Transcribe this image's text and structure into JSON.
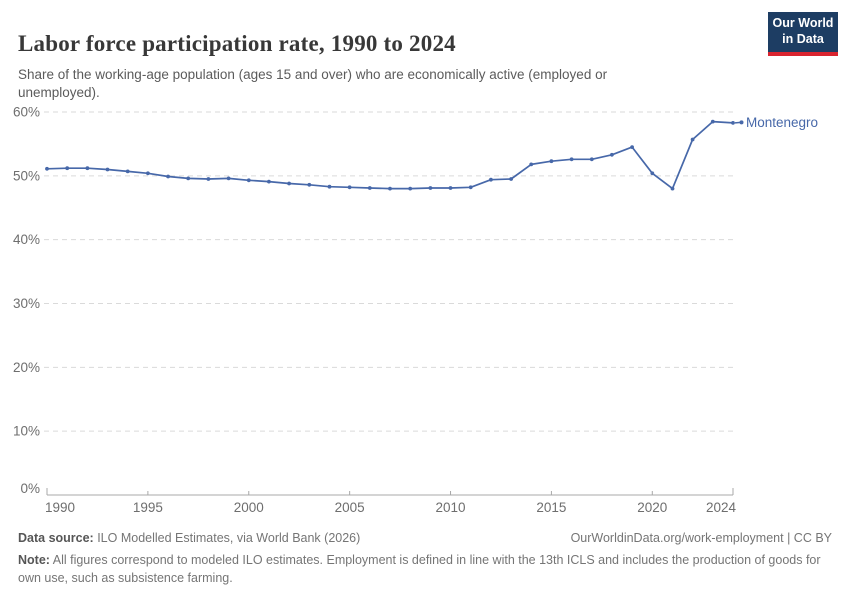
{
  "header": {
    "title": "Labor force participation rate, 1990 to 2024",
    "subtitle": "Share of the working-age population (ages 15 and over) who are economically active (employed or unemployed).",
    "logo": {
      "line1": "Our World",
      "line2": "in Data",
      "bg_color": "#1d3d63",
      "accent_color": "#d9242f"
    }
  },
  "chart_data": {
    "type": "line",
    "title": "Labor force participation rate, 1990 to 2024",
    "xlabel": "",
    "ylabel": "",
    "ylim": [
      0,
      60
    ],
    "grid": "horizontal-dashed",
    "legend_position": "end-of-line-label",
    "x": [
      1990,
      1991,
      1992,
      1993,
      1994,
      1995,
      1996,
      1997,
      1998,
      1999,
      2000,
      2001,
      2002,
      2003,
      2004,
      2005,
      2006,
      2007,
      2008,
      2009,
      2010,
      2011,
      2012,
      2013,
      2014,
      2015,
      2016,
      2017,
      2018,
      2019,
      2020,
      2021,
      2022,
      2023,
      2024
    ],
    "series": [
      {
        "name": "Montenegro",
        "color": "#4768a9",
        "values": [
          51.1,
          51.2,
          51.2,
          51.0,
          50.7,
          50.4,
          49.9,
          49.6,
          49.5,
          49.6,
          49.3,
          49.1,
          48.8,
          48.6,
          48.3,
          48.2,
          48.1,
          48.0,
          48.0,
          48.1,
          48.1,
          48.2,
          49.4,
          49.5,
          51.8,
          52.3,
          52.6,
          52.6,
          53.3,
          54.5,
          50.4,
          48.0,
          55.7,
          58.5,
          58.3
        ]
      }
    ],
    "y_ticks": [
      {
        "value": 0,
        "label": "0%"
      },
      {
        "value": 10,
        "label": "10%"
      },
      {
        "value": 20,
        "label": "20%"
      },
      {
        "value": 30,
        "label": "30%"
      },
      {
        "value": 40,
        "label": "40%"
      },
      {
        "value": 50,
        "label": "50%"
      },
      {
        "value": 60,
        "label": "60%"
      }
    ],
    "x_ticks": [
      1990,
      1995,
      2000,
      2005,
      2010,
      2015,
      2020,
      2024
    ],
    "colors": {
      "gridline": "#dadada",
      "axis": "#a8a8a8",
      "tick_label": "#6e6e6e"
    }
  },
  "footer": {
    "source_label": "Data source:",
    "source_text": " ILO Modelled Estimates, via World Bank (2026)",
    "credit": "OurWorldinData.org/work-employment | CC BY",
    "note_label": "Note:",
    "note_text": " All figures correspond to modeled ILO estimates. Employment is defined in line with the 13th ICLS and includes the production of goods for own use, such as subsistence farming."
  }
}
